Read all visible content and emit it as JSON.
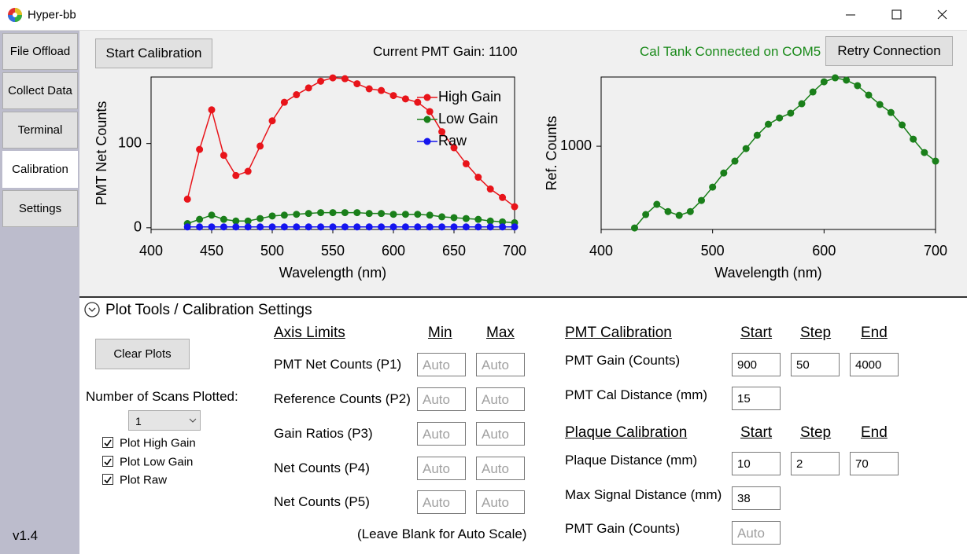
{
  "window": {
    "title": "Hyper-bb"
  },
  "sidebar": {
    "tabs": [
      "File Offload",
      "Collect Data",
      "Terminal",
      "Calibration",
      "Settings"
    ],
    "selected_index": 3,
    "version": "v1.4"
  },
  "toolbar": {
    "start_button": "Start Calibration",
    "gain_status": "Current PMT Gain: 1100",
    "connection_status": "Cal Tank Connected on COM5",
    "retry_button": "Retry Connection"
  },
  "chart_data": [
    {
      "type": "line",
      "xlabel": "Wavelength (nm)",
      "ylabel": "PMT Net Counts",
      "x": [
        430,
        440,
        450,
        460,
        470,
        480,
        490,
        500,
        510,
        520,
        530,
        540,
        550,
        560,
        570,
        580,
        590,
        600,
        610,
        620,
        630,
        640,
        650,
        660,
        670,
        680,
        690,
        700
      ],
      "series": [
        {
          "name": "High Gain",
          "color": "#e8141a",
          "values": [
            34,
            93,
            140,
            86,
            62,
            67,
            97,
            127,
            149,
            158,
            166,
            174,
            178,
            177,
            171,
            165,
            163,
            157,
            153,
            149,
            138,
            114,
            95,
            76,
            60,
            46,
            36,
            25
          ]
        },
        {
          "name": "Low Gain",
          "color": "#1a7f1a",
          "values": [
            5,
            10,
            15,
            10,
            8,
            8,
            11,
            14,
            15,
            16,
            17,
            18,
            18,
            18,
            18,
            17,
            17,
            16,
            16,
            16,
            15,
            13,
            12,
            11,
            10,
            8,
            7,
            6
          ]
        },
        {
          "name": "Raw",
          "color": "#1515ee",
          "values": [
            1,
            1,
            1,
            1,
            1,
            1,
            1,
            1,
            1,
            1,
            1,
            1,
            1,
            1,
            1,
            1,
            1,
            1,
            1,
            1,
            1,
            1,
            1,
            1,
            1,
            1,
            1,
            1
          ]
        }
      ],
      "xlim": [
        400,
        700
      ],
      "xticks": [
        400,
        450,
        500,
        550,
        600,
        650,
        700
      ],
      "ylim": [
        -2,
        179
      ],
      "yticks": [
        0,
        100
      ],
      "legend": "upper right"
    },
    {
      "type": "line",
      "xlabel": "Wavelength (nm)",
      "ylabel": "Ref. Counts",
      "log_y": true,
      "x": [
        430,
        440,
        450,
        460,
        470,
        480,
        490,
        500,
        510,
        520,
        530,
        540,
        550,
        560,
        570,
        580,
        590,
        600,
        610,
        620,
        630,
        640,
        650,
        660,
        670,
        680,
        690,
        700
      ],
      "series": [
        {
          "color": "#1a7f1a",
          "values": [
            656,
            703,
            741,
            714,
            700,
            714,
            756,
            810,
            871,
            926,
            988,
            1058,
            1120,
            1157,
            1186,
            1245,
            1323,
            1394,
            1423,
            1406,
            1367,
            1302,
            1240,
            1190,
            1116,
            1037,
            968,
            926
          ]
        }
      ],
      "xlim": [
        400,
        700
      ],
      "xticks": [
        400,
        500,
        600,
        700
      ],
      "ylim": [
        651,
        1429
      ],
      "yticks": [
        1000
      ]
    }
  ],
  "panel": {
    "title": "Plot Tools / Calibration Settings",
    "clear_button": "Clear Plots",
    "scans_label": "Number of Scans Plotted:",
    "scans_value": 1,
    "checkboxes": [
      {
        "label": "Plot High Gain",
        "checked": true
      },
      {
        "label": "Plot Low Gain",
        "checked": true
      },
      {
        "label": "Plot Raw",
        "checked": true
      }
    ],
    "axis_limits": {
      "header": "Axis Limits",
      "min_header": "Min",
      "max_header": "Max",
      "rows": [
        {
          "label": "PMT Net Counts (P1)",
          "min": "Auto",
          "max": "Auto"
        },
        {
          "label": "Reference Counts (P2)",
          "min": "Auto",
          "max": "Auto"
        },
        {
          "label": "Gain Ratios (P3)",
          "min": "Auto",
          "max": "Auto"
        },
        {
          "label": "Net Counts (P4)",
          "min": "Auto",
          "max": "Auto"
        },
        {
          "label": "Net Counts (P5)",
          "min": "Auto",
          "max": "Auto"
        }
      ],
      "note": "(Leave Blank for Auto Scale)"
    },
    "pmt_calibration": {
      "header": "PMT Calibration",
      "start_header": "Start",
      "step_header": "Step",
      "end_header": "End",
      "gain_label": "PMT Gain (Counts)",
      "gain_start": 900,
      "gain_step": 50,
      "gain_end": 4000,
      "distance_label": "PMT Cal Distance (mm)",
      "distance": 15
    },
    "plaque_calibration": {
      "header": "Plaque Calibration",
      "start_header": "Start",
      "step_header": "Step",
      "end_header": "End",
      "distance_label": "Plaque Distance (mm)",
      "distance_start": 10,
      "distance_step": 2,
      "distance_end": 70,
      "max_signal_label": "Max Signal Distance (mm)",
      "max_signal": 38,
      "gain_label": "PMT Gain (Counts)",
      "gain": "Auto"
    }
  }
}
